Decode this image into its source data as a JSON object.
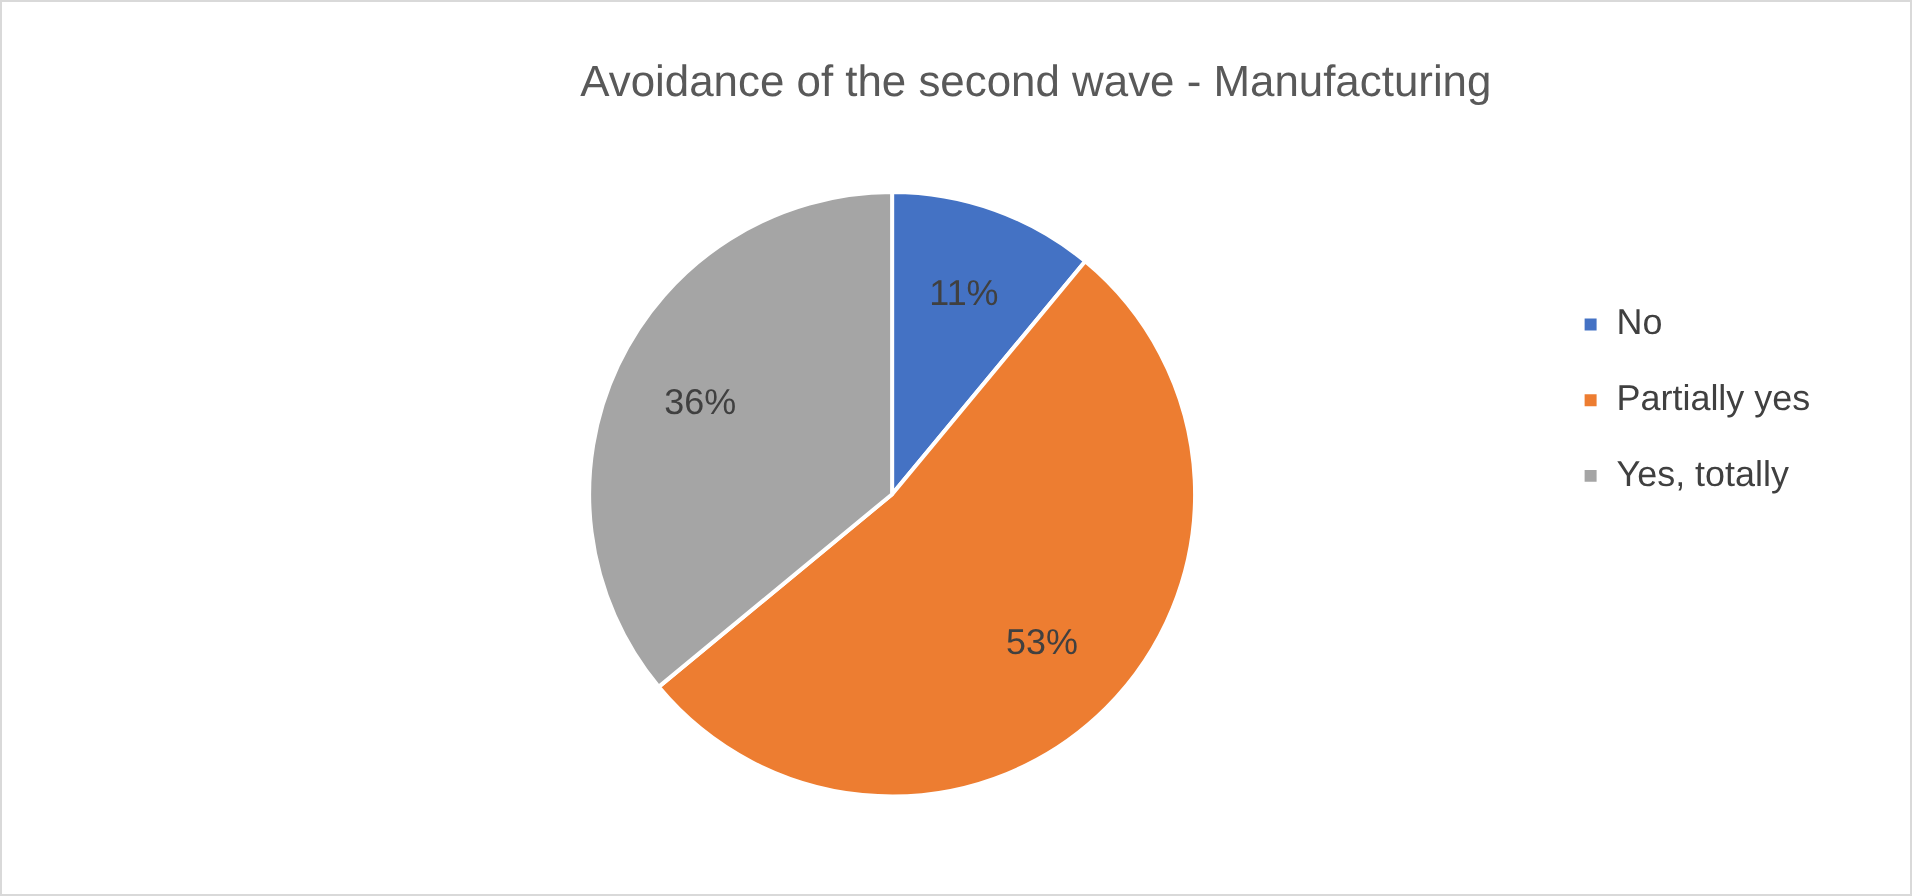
{
  "chart_data": {
    "type": "pie",
    "title": "Avoidance of the second wave - Manufacturing",
    "categories": [
      "No",
      "Partially yes",
      "Yes, totally"
    ],
    "values": [
      11,
      53,
      36
    ],
    "colors": [
      "#4472c4",
      "#ed7d31",
      "#a5a5a5"
    ],
    "value_labels": [
      "11%",
      "53%",
      "36%"
    ],
    "legend": "right"
  }
}
